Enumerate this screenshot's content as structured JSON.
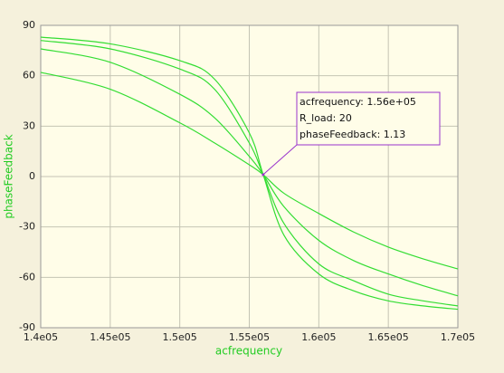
{
  "chart_data": {
    "type": "line",
    "xlabel": "acfrequency",
    "ylabel": "phaseFeedback",
    "x": [
      140000,
      145000,
      150000,
      152500,
      155000,
      156000,
      157500,
      160000,
      162500,
      165000,
      167500,
      170000
    ],
    "series": [
      {
        "color": "#33dd33",
        "values": [
          62,
          52,
          32,
          20,
          7,
          1.13,
          -10,
          -22,
          -33,
          -42,
          -49,
          -55
        ]
      },
      {
        "color": "#33dd33",
        "values": [
          76,
          68,
          49,
          35,
          12,
          1.13,
          -18,
          -38,
          -50,
          -58,
          -65,
          -71
        ]
      },
      {
        "color": "#33dd33",
        "values": [
          81,
          76,
          64,
          52,
          20,
          1.13,
          -28,
          -52,
          -62,
          -70,
          -74,
          -77
        ]
      },
      {
        "color": "#33dd33",
        "values": [
          83,
          79,
          69,
          58,
          26,
          1.13,
          -35,
          -58,
          -68,
          -74,
          -77,
          -79
        ]
      }
    ],
    "xlim": [
      140000,
      170000
    ],
    "xticks": [
      {
        "value": 140000,
        "label": "1.4e05"
      },
      {
        "value": 145000,
        "label": "1.45e05"
      },
      {
        "value": 150000,
        "label": "1.5e05"
      },
      {
        "value": 155000,
        "label": "1.55e05"
      },
      {
        "value": 160000,
        "label": "1.6e05"
      },
      {
        "value": 165000,
        "label": "1.65e05"
      },
      {
        "value": 170000,
        "label": "1.7e05"
      }
    ],
    "ylim": [
      -90,
      90
    ],
    "yticks": [
      -90,
      -60,
      -30,
      0,
      30,
      60,
      90
    ],
    "grid": true,
    "tooltip": {
      "x": 156000,
      "y": 1.13,
      "lines": [
        "acfrequency: 1.56e+05",
        "R_load: 20",
        "phaseFeedback: 1.13"
      ],
      "color": "#9933cc"
    }
  }
}
